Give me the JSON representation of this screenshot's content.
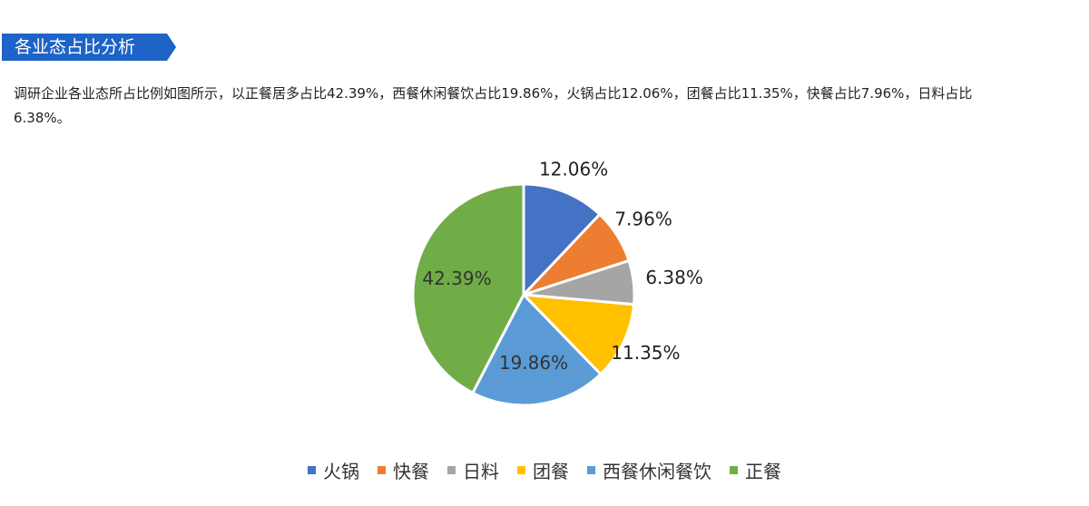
{
  "header": {
    "title": "各业态占比分析",
    "accent": "#1d63c8"
  },
  "description": "调研企业各业态所占比例如图所示，以正餐居多占比42.39%，西餐休闲餐饮占比19.86%，火锅占比12.06%，团餐占比11.35%，快餐占比7.96%，日料占比6.38%。",
  "chart_data": {
    "type": "pie",
    "categories": [
      "火锅",
      "快餐",
      "日料",
      "团餐",
      "西餐休闲餐饮",
      "正餐"
    ],
    "values": [
      12.06,
      7.96,
      6.38,
      11.35,
      19.86,
      42.39
    ],
    "data_labels": [
      "12.06%",
      "7.96%",
      "6.38%",
      "11.35%",
      "19.86%",
      "42.39%"
    ],
    "colors": [
      "#4472c4",
      "#ed7d31",
      "#a5a5a5",
      "#ffc000",
      "#5b9bd5",
      "#70ad47"
    ],
    "start_angle": "top, clockwise",
    "legend_position": "bottom",
    "title": ""
  }
}
